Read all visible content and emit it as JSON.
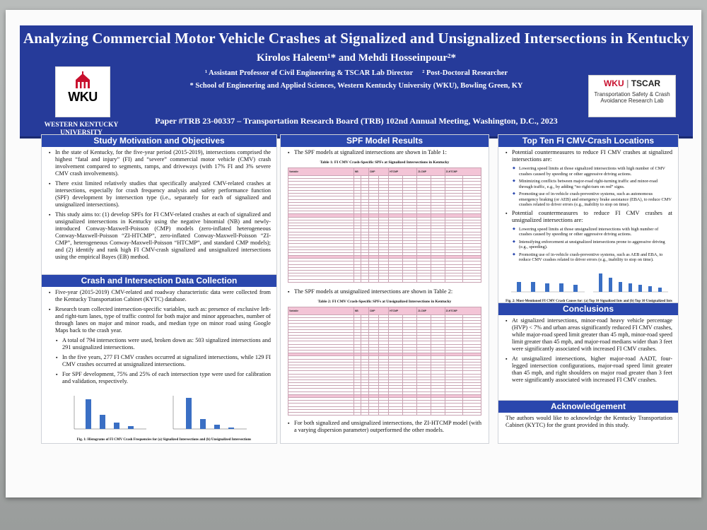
{
  "poster": {
    "title": "Analyzing Commercial Motor Vehicle Crashes at Signalized and Unsignalized Intersections in Kentucky",
    "authors": "Kirolos Haleem¹* and Mehdi Hosseinpour²*",
    "affiliation_1": "¹ Assistant Professor of Civil Engineering & TSCAR Lab Director",
    "affiliation_2": "² Post-Doctoral Researcher",
    "affiliation_3": "* School of Engineering and Applied Sciences, Western Kentucky University (WKU), Bowling Green, KY",
    "paper_line": "Paper #TRB 23-00337 – Transportation Research Board (TRB) 102nd Annual Meeting, Washington, D.C., 2023"
  },
  "logos": {
    "wku_mark": "WKU",
    "wku_name_line1": "WESTERN KENTUCKY",
    "wku_name_line2": "UNIVERSITY",
    "tscar_mark_a": "WKU",
    "tscar_mark_b": "TSCAR",
    "tscar_sub_line1": "Transportation Safety & Crash",
    "tscar_sub_line2": "Avoidance Research Lab"
  },
  "colors": {
    "banner": "#263b9a",
    "section_header": "#2a47ad",
    "wku_red": "#c8102e",
    "table_header": "#f3c4d6",
    "bar": "#3a6fc4"
  },
  "motivation": {
    "heading": "Study Motivation and Objectives",
    "bullets": [
      "In the state of Kentucky, for the five-year period (2015-2019), intersections comprised the highest “fatal and injury” (FI) and “severe” commercial motor vehicle (CMV) crash involvement compared to segments, ramps, and driveways (with 17% FI and 3% severe CMV crash involvements).",
      "There exist limited relatively studies that specifically analyzed CMV-related crashes at intersections, especially for crash frequency analysis and safety performance function (SPF) development by intersection type (i.e., separately for each of signalized and unsignalized intersections).",
      "This study aims to: (1) develop SPFs for FI CMV-related crashes at each of signalized and unsignalized intersections in Kentucky using the negative binomial (NB) and newly-introduced Conway-Maxwell-Poisson (CMP) models (zero-inflated heterogeneous Conway-Maxwell-Poisson “ZI-HTCMP”, zero-inflated Conway-Maxwell-Poisson “ZI-CMP”, heterogeneous Conway-Maxwell-Poisson “HTCMP”, and standard CMP models); and (2) identify and rank high FI CMV-crash signalized and unsignalized intersections using the empirical Bayes (EB) method."
    ]
  },
  "data_collection": {
    "heading": "Crash and Intersection Data Collection",
    "bullets": [
      "Five-year (2015-2019) CMV-related and roadway characteristic data were collected from the Kentucky Transportation Cabinet (KYTC) database.",
      "Research team collected intersection-specific variables, such as: presence of exclusive left- and right-turn lanes, type of traffic control for both major and minor approaches, number of through lanes on major and minor roads, and median type on minor road using Google Maps back to the crash year."
    ],
    "sub_bullets": [
      "A total of 794 intersections were used, broken down as: 503 signalized intersections and 291 unsignalized intersections.",
      "In the five years, 277 FI CMV crashes occurred at signalized intersections, while 129 FI CMV crashes occurred at unsignalized intersections.",
      "For SPF development, 75% and 25% of each intersection type were used for calibration and validation, respectively."
    ],
    "figure_caption": "Fig. 1: Histograms of FI CMV Crash Frequencies for (a) Signalized Intersections and (b) Unsignalized Intersections"
  },
  "spf_results": {
    "heading": "SPF Model Results",
    "intro_1": "The SPF models at signalized intersections are shown in Table 1:",
    "table1_caption": "Table 1: FI CMV Crash-Specific SPFs at Signalized Intersections in Kentucky",
    "intro_2": "The SPF models at unsignalized intersections are shown in Table 2:",
    "table2_caption": "Table 2: FI CMV Crash-Specific SPFs at Unsignalized Intersections in Kentucky",
    "table_header": [
      "Variable",
      "NB",
      "CMP",
      "HTCMP",
      "ZI-CMP",
      "ZI-HTCMP"
    ],
    "conclusion_bullet": "For both signalized and unsignalized intersections, the ZI-HTCMP model (with a varying dispersion parameter) outperformed the other models."
  },
  "top_ten": {
    "heading": "Top Ten FI CMV-Crash Locations",
    "bullet_1": "Potential countermeasures to reduce FI CMV crashes at signalized intersections are:",
    "sub_1": [
      "Lowering speed limits at those signalized intersections with high number of CMV crashes caused by speeding or other aggressive driving actions.",
      "Minimizing conflicts between major-road right-turning traffic and minor-road through traffic, e.g., by adding “no right-turn on red” signs.",
      "Promoting use of in-vehicle crash-preventive systems, such as autonomous emergency braking (or AEB) and emergency brake assistance (EBA), to reduce CMV crashes related to driver errors (e.g., inability to stop on time)."
    ],
    "bullet_2": "Potential countermeasures to reduce FI CMV crashes at unsignalized intersections are:",
    "sub_2": [
      "Lowering speed limits at those unsignalized intersections with high number of crashes caused by speeding or other aggressive driving actions.",
      "Intensifying enforcement at unsignalized intersections prone to aggressive driving (e.g., speeding).",
      "Promoting use of in-vehicle crash-preventive systems, such as AEB and EBA, to reduce CMV crashes related to driver errors (e.g., inability to stop on time)."
    ],
    "figure_caption": "Fig. 2: Most-Mentioned FI CMV Crash Causes for: (a) Top 10 Signalized Ints and (b) Top 10 Unsignalized Ints"
  },
  "conclusions": {
    "heading": "Conclusions",
    "bullets": [
      "At signalized intersections, minor-road heavy vehicle percentage (HVP) < 7% and urban areas significantly reduced FI CMV crashes, while major-road speed limit greater than 45 mph, minor-road speed limit greater than 45 mph, and major-road medians wider than 3 feet were significantly associated with increased FI CMV crashes.",
      "At unsignalized intersections, higher major-road AADT, four-legged intersection configurations, major-road speed limit greater than 45 mph, and right shoulders on major road greater than 3 feet were significantly associated with increased FI CMV crashes."
    ]
  },
  "acknowledgement": {
    "heading": "Acknowledgement",
    "text": "The authors would like to acknowledge the Kentucky Transportation Cabinet (KYTC) for the grant provided in this study."
  }
}
